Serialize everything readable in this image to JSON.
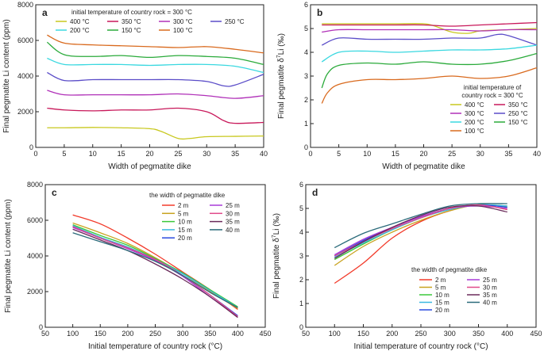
{
  "chart_data": [
    {
      "panel": "a",
      "type": "line",
      "xlabel": "Width of pegmatite dike",
      "ylabel": "Final pegmatite Li content (ppm)",
      "xlim": [
        0,
        40
      ],
      "ylim": [
        0,
        8000
      ],
      "xticks": [
        "0",
        "5",
        "10",
        "15",
        "20",
        "25",
        "30",
        "35",
        "40"
      ],
      "yticks": [
        "0",
        "2000",
        "4000",
        "6000",
        "8000"
      ],
      "legend_title": "initial temperature of country rock = 300 °C",
      "legend_position": "top",
      "series": [
        {
          "name": "400 °C",
          "color": "#c8c81e",
          "x": [
            2,
            5,
            10,
            15,
            20,
            22,
            25,
            27,
            30,
            35,
            40
          ],
          "y": [
            1100,
            1100,
            1120,
            1100,
            1050,
            900,
            500,
            500,
            600,
            620,
            640
          ]
        },
        {
          "name": "350 °C",
          "color": "#c8185a",
          "x": [
            2,
            5,
            10,
            15,
            20,
            25,
            30,
            33,
            35,
            40
          ],
          "y": [
            2200,
            2100,
            2050,
            2100,
            2100,
            2200,
            2000,
            1500,
            1350,
            1400
          ]
        },
        {
          "name": "300 °C",
          "color": "#b030b8",
          "x": [
            2,
            5,
            10,
            15,
            20,
            25,
            30,
            35,
            40
          ],
          "y": [
            3200,
            2950,
            2950,
            2950,
            2950,
            3000,
            2900,
            2750,
            2900
          ]
        },
        {
          "name": "250 °C",
          "color": "#5a4cc8",
          "x": [
            2,
            5,
            10,
            15,
            20,
            25,
            30,
            33,
            35,
            40
          ],
          "y": [
            4200,
            3750,
            3800,
            3800,
            3800,
            3800,
            3700,
            3450,
            3500,
            4100
          ]
        },
        {
          "name": "200 °C",
          "color": "#3ad8e0",
          "x": [
            2,
            5,
            10,
            15,
            20,
            25,
            30,
            35,
            40
          ],
          "y": [
            5000,
            4650,
            4650,
            4650,
            4600,
            4650,
            4650,
            4550,
            4200
          ]
        },
        {
          "name": "150 °C",
          "color": "#2aaa3a",
          "x": [
            2,
            5,
            10,
            15,
            20,
            25,
            30,
            35,
            40
          ],
          "y": [
            5900,
            5200,
            5100,
            5150,
            5050,
            5150,
            5100,
            5000,
            4650
          ]
        },
        {
          "name": "100 °C",
          "color": "#d96a1e",
          "x": [
            2,
            5,
            10,
            15,
            20,
            25,
            30,
            35,
            40
          ],
          "y": [
            6300,
            5850,
            5750,
            5700,
            5650,
            5600,
            5650,
            5500,
            5300
          ]
        }
      ]
    },
    {
      "panel": "b",
      "type": "line",
      "xlabel": "Width of pegmatite dike",
      "ylabel_prefix": "Final pegmatite δ",
      "ylabel_sup": "7",
      "ylabel_suffix": "Li (‰)",
      "xlim": [
        0,
        40
      ],
      "ylim": [
        0,
        6
      ],
      "xticks": [
        "0",
        "5",
        "10",
        "15",
        "20",
        "25",
        "30",
        "35",
        "40"
      ],
      "yticks": [
        "0",
        "1",
        "2",
        "3",
        "4",
        "5",
        "6"
      ],
      "legend_title": [
        "initial temperature of",
        "country rock = 300 °C"
      ],
      "legend_position": "lower-right",
      "series": [
        {
          "name": "400 °C",
          "color": "#c8c81e",
          "x": [
            2,
            5,
            10,
            15,
            20,
            22,
            25,
            28,
            30,
            35,
            40
          ],
          "y": [
            5.2,
            5.2,
            5.2,
            5.2,
            5.2,
            5.1,
            4.85,
            4.8,
            4.9,
            4.95,
            5.0
          ]
        },
        {
          "name": "350 °C",
          "color": "#c8185a",
          "x": [
            2,
            5,
            10,
            15,
            20,
            25,
            30,
            35,
            40
          ],
          "y": [
            5.15,
            5.15,
            5.15,
            5.15,
            5.15,
            5.1,
            5.15,
            5.2,
            5.25
          ]
        },
        {
          "name": "300 °C",
          "color": "#b030b8",
          "x": [
            2,
            5,
            10,
            15,
            20,
            25,
            30,
            35,
            40
          ],
          "y": [
            4.85,
            4.95,
            4.95,
            4.95,
            4.95,
            4.95,
            4.9,
            4.95,
            4.95
          ]
        },
        {
          "name": "250 °C",
          "color": "#5a4cc8",
          "x": [
            2,
            5,
            10,
            15,
            20,
            25,
            30,
            33,
            35,
            40
          ],
          "y": [
            4.3,
            4.6,
            4.55,
            4.55,
            4.55,
            4.6,
            4.6,
            4.75,
            4.7,
            4.3
          ]
        },
        {
          "name": "200 °C",
          "color": "#3ad8e0",
          "x": [
            2,
            5,
            10,
            15,
            20,
            25,
            30,
            35,
            40
          ],
          "y": [
            3.6,
            4.0,
            4.05,
            4.0,
            4.05,
            4.1,
            4.1,
            4.15,
            4.3
          ]
        },
        {
          "name": "150 °C",
          "color": "#2aaa3a",
          "x": [
            2,
            3,
            5,
            10,
            15,
            20,
            25,
            30,
            35,
            40
          ],
          "y": [
            2.5,
            3.1,
            3.45,
            3.55,
            3.5,
            3.6,
            3.5,
            3.5,
            3.65,
            3.95
          ]
        },
        {
          "name": "100 °C",
          "color": "#d96a1e",
          "x": [
            2,
            3,
            5,
            10,
            15,
            20,
            25,
            30,
            35,
            40
          ],
          "y": [
            1.85,
            2.3,
            2.65,
            2.85,
            2.85,
            2.9,
            3.0,
            2.9,
            3.0,
            3.35
          ]
        }
      ]
    },
    {
      "panel": "c",
      "type": "line",
      "xlabel": "Initial temperature of country rock (°C)",
      "ylabel": "Final pegmatite Li content (ppm)",
      "xlim": [
        50,
        450
      ],
      "ylim": [
        0,
        8000
      ],
      "xticks": [
        "50",
        "100",
        "150",
        "200",
        "250",
        "300",
        "350",
        "400",
        "450"
      ],
      "yticks": [
        "0",
        "2000",
        "4000",
        "6000",
        "8000"
      ],
      "legend_title": "the width of pegmatite dike",
      "legend_position": "top-right",
      "series": [
        {
          "name": "2 m",
          "color": "#f23a2a",
          "x": [
            100,
            150,
            200,
            250,
            300,
            350,
            400
          ],
          "y": [
            6300,
            5800,
            5000,
            4100,
            3100,
            2100,
            1000
          ]
        },
        {
          "name": "5 m",
          "color": "#c8a21e",
          "x": [
            100,
            150,
            200,
            250,
            300,
            350,
            400
          ],
          "y": [
            5850,
            5300,
            4700,
            3900,
            3000,
            2000,
            1050
          ]
        },
        {
          "name": "10 m",
          "color": "#3ac83a",
          "x": [
            100,
            150,
            200,
            250,
            300,
            350,
            400
          ],
          "y": [
            5750,
            5150,
            4600,
            3850,
            3050,
            2100,
            1150
          ]
        },
        {
          "name": "15 m",
          "color": "#3ab8e0",
          "x": [
            100,
            150,
            200,
            250,
            300,
            350,
            400
          ],
          "y": [
            5700,
            5050,
            4500,
            3800,
            3000,
            2050,
            1100
          ]
        },
        {
          "name": "20 m",
          "color": "#2a4ae0",
          "x": [
            100,
            150,
            200,
            250,
            300,
            350,
            400
          ],
          "y": [
            5650,
            5000,
            4450,
            3800,
            2900,
            1800,
            650
          ]
        },
        {
          "name": "25 m",
          "color": "#a83ad8",
          "x": [
            100,
            150,
            200,
            250,
            300,
            350,
            400
          ],
          "y": [
            5600,
            5000,
            4400,
            3750,
            2850,
            1700,
            600
          ]
        },
        {
          "name": "30 m",
          "color": "#e04a8a",
          "x": [
            100,
            150,
            200,
            250,
            300,
            350,
            400
          ],
          "y": [
            5650,
            5000,
            4450,
            3800,
            2900,
            1800,
            600
          ]
        },
        {
          "name": "35 m",
          "color": "#6a2a5a",
          "x": [
            100,
            150,
            200,
            250,
            300,
            350,
            400
          ],
          "y": [
            5500,
            4900,
            4300,
            3550,
            2700,
            1700,
            550
          ]
        },
        {
          "name": "40 m",
          "color": "#2a6a7a",
          "x": [
            100,
            150,
            200,
            250,
            300,
            350,
            400
          ],
          "y": [
            5300,
            4800,
            4300,
            3700,
            2900,
            1950,
            1100
          ]
        }
      ]
    },
    {
      "panel": "d",
      "type": "line",
      "xlabel": "Initial temperature of country rock (°C)",
      "ylabel_prefix": "Final pegmatite δ",
      "ylabel_sup": "7",
      "ylabel_suffix": "Li (‰)",
      "xlim": [
        50,
        450
      ],
      "ylim": [
        0,
        6
      ],
      "xticks": [
        "50",
        "100",
        "150",
        "200",
        "250",
        "300",
        "350",
        "400",
        "450"
      ],
      "yticks": [
        "0",
        "1",
        "2",
        "3",
        "4",
        "5",
        "6"
      ],
      "legend_title": "the width of pegmatite dike",
      "legend_position": "bottom-right",
      "series": [
        {
          "name": "2 m",
          "color": "#f23a2a",
          "x": [
            100,
            150,
            200,
            250,
            300,
            350,
            400
          ],
          "y": [
            1.85,
            2.7,
            3.75,
            4.45,
            4.9,
            5.15,
            4.95
          ]
        },
        {
          "name": "5 m",
          "color": "#c8a21e",
          "x": [
            100,
            150,
            200,
            250,
            300,
            350,
            400
          ],
          "y": [
            2.6,
            3.4,
            4.0,
            4.5,
            4.9,
            5.15,
            5.05
          ]
        },
        {
          "name": "10 m",
          "color": "#3ac83a",
          "x": [
            100,
            150,
            200,
            250,
            300,
            350,
            400
          ],
          "y": [
            2.85,
            3.5,
            4.1,
            4.6,
            5.0,
            5.15,
            5.1
          ]
        },
        {
          "name": "15 m",
          "color": "#3ab8e0",
          "x": [
            100,
            150,
            200,
            250,
            300,
            350,
            400
          ],
          "y": [
            2.95,
            3.55,
            4.1,
            4.6,
            4.95,
            5.15,
            5.1
          ]
        },
        {
          "name": "20 m",
          "color": "#2a4ae0",
          "x": [
            100,
            150,
            200,
            250,
            300,
            350,
            400
          ],
          "y": [
            3.0,
            3.65,
            4.2,
            4.65,
            5.0,
            5.15,
            5.05
          ]
        },
        {
          "name": "25 m",
          "color": "#a83ad8",
          "x": [
            100,
            150,
            200,
            250,
            300,
            350,
            400
          ],
          "y": [
            3.05,
            3.7,
            4.2,
            4.65,
            5.0,
            5.1,
            5.0
          ]
        },
        {
          "name": "30 m",
          "color": "#e04a8a",
          "x": [
            100,
            150,
            200,
            250,
            300,
            350,
            400
          ],
          "y": [
            3.0,
            3.6,
            4.15,
            4.6,
            5.0,
            5.15,
            4.95
          ]
        },
        {
          "name": "35 m",
          "color": "#6a2a5a",
          "x": [
            100,
            150,
            200,
            250,
            300,
            350,
            400
          ],
          "y": [
            2.9,
            3.6,
            4.2,
            4.7,
            5.05,
            5.1,
            4.85
          ]
        },
        {
          "name": "40 m",
          "color": "#2a6a7a",
          "x": [
            100,
            150,
            200,
            250,
            300,
            350,
            400
          ],
          "y": [
            3.35,
            3.95,
            4.35,
            4.75,
            5.1,
            5.2,
            5.2
          ]
        }
      ]
    }
  ]
}
